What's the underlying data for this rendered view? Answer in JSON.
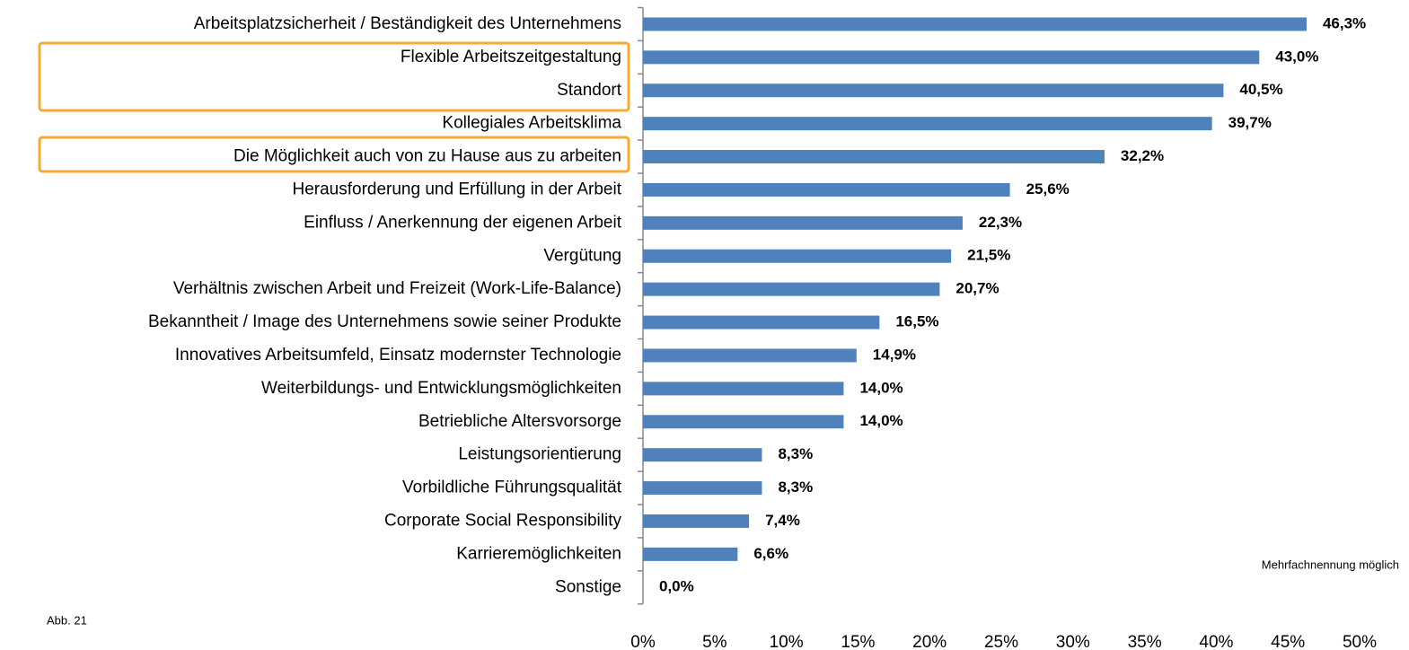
{
  "chart_data": {
    "type": "barh",
    "categories": [
      "Arbeitsplatzsicherheit / Beständigkeit des Unternehmens",
      "Flexible Arbeitszeitgestaltung",
      "Standort",
      "Kollegiales Arbeitsklima",
      "Die Möglichkeit auch von zu Hause aus zu arbeiten",
      "Herausforderung und Erfüllung in der Arbeit",
      "Einfluss / Anerkennung der eigenen Arbeit",
      "Vergütung",
      "Verhältnis zwischen Arbeit und Freizeit (Work-Life-Balance)",
      "Bekanntheit / Image des Unternehmens sowie seiner Produkte",
      "Innovatives Arbeitsumfeld, Einsatz modernster Technologie",
      "Weiterbildungs- und Entwicklungsmöglichkeiten",
      "Betriebliche Altersvorsorge",
      "Leistungsorientierung",
      "Vorbildliche Führungsqualität",
      "Corporate Social Responsibility",
      "Karrieremöglichkeiten",
      "Sonstige"
    ],
    "values": [
      46.3,
      43.0,
      40.5,
      39.7,
      32.2,
      25.6,
      22.3,
      21.5,
      20.7,
      16.5,
      14.9,
      14.0,
      14.0,
      8.3,
      8.3,
      7.4,
      6.6,
      0.0
    ],
    "value_labels": [
      "46,3%",
      "43,0%",
      "40,5%",
      "39,7%",
      "32,2%",
      "25,6%",
      "22,3%",
      "21,5%",
      "20,7%",
      "16,5%",
      "14,9%",
      "14,0%",
      "14,0%",
      "8,3%",
      "8,3%",
      "7,4%",
      "6,6%",
      "0,0%"
    ],
    "color": "#4f81bd",
    "xlim": [
      0,
      50
    ],
    "xticks": [
      {
        "value": 0,
        "label": "0%"
      },
      {
        "value": 5,
        "label": "5%"
      },
      {
        "value": 10,
        "label": "10%"
      },
      {
        "value": 15,
        "label": "15%"
      },
      {
        "value": 20,
        "label": "20%"
      },
      {
        "value": 25,
        "label": "25%"
      },
      {
        "value": 30,
        "label": "30%"
      },
      {
        "value": 35,
        "label": "35%"
      },
      {
        "value": 40,
        "label": "40%"
      },
      {
        "value": 45,
        "label": "45%"
      },
      {
        "value": 50,
        "label": "50%"
      }
    ],
    "annotations": [
      "Mehrfachnennung möglich",
      "Abb. 21"
    ]
  }
}
